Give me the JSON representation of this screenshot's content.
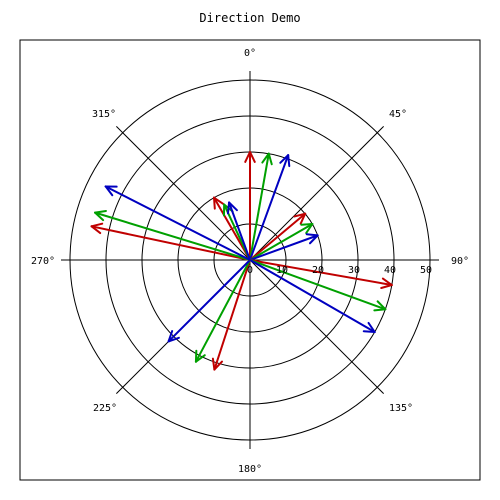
{
  "chart_data": {
    "type": "polar-vector",
    "title": "Direction Demo",
    "angle_labels": [
      "0°",
      "45°",
      "90°",
      "135°",
      "180°",
      "225°",
      "270°",
      "315°"
    ],
    "angle_label_degrees": [
      0,
      45,
      90,
      135,
      180,
      225,
      270,
      315
    ],
    "angle_direction": "clockwise",
    "zero_angle": "top",
    "radial_ticks": [
      0,
      10,
      20,
      30,
      40,
      50
    ],
    "radial_tick_labels": [
      "0",
      "10",
      "20",
      "30",
      "40",
      "50"
    ],
    "radial_max": 50,
    "grid": true,
    "colors": {
      "red": "#c00000",
      "green": "#00a000",
      "blue": "#0000c0"
    },
    "vectors": [
      {
        "color": "red",
        "angle": 0,
        "magnitude": 30
      },
      {
        "color": "green",
        "angle": 10,
        "magnitude": 30
      },
      {
        "color": "blue",
        "angle": 20,
        "magnitude": 31
      },
      {
        "color": "red",
        "angle": 330,
        "magnitude": 20
      },
      {
        "color": "green",
        "angle": 335,
        "magnitude": 17
      },
      {
        "color": "blue",
        "angle": 340,
        "magnitude": 17
      },
      {
        "color": "red",
        "angle": 50,
        "magnitude": 20
      },
      {
        "color": "green",
        "angle": 60,
        "magnitude": 20
      },
      {
        "color": "blue",
        "angle": 70,
        "magnitude": 20
      },
      {
        "color": "red",
        "angle": 100,
        "magnitude": 40
      },
      {
        "color": "green",
        "angle": 110,
        "magnitude": 40
      },
      {
        "color": "blue",
        "angle": 120,
        "magnitude": 40
      },
      {
        "color": "red",
        "angle": 198,
        "magnitude": 32
      },
      {
        "color": "green",
        "angle": 208,
        "magnitude": 32
      },
      {
        "color": "blue",
        "angle": 225,
        "magnitude": 32
      },
      {
        "color": "red",
        "angle": 282,
        "magnitude": 45
      },
      {
        "color": "green",
        "angle": 287,
        "magnitude": 45
      },
      {
        "color": "blue",
        "angle": 297,
        "magnitude": 45
      }
    ]
  }
}
